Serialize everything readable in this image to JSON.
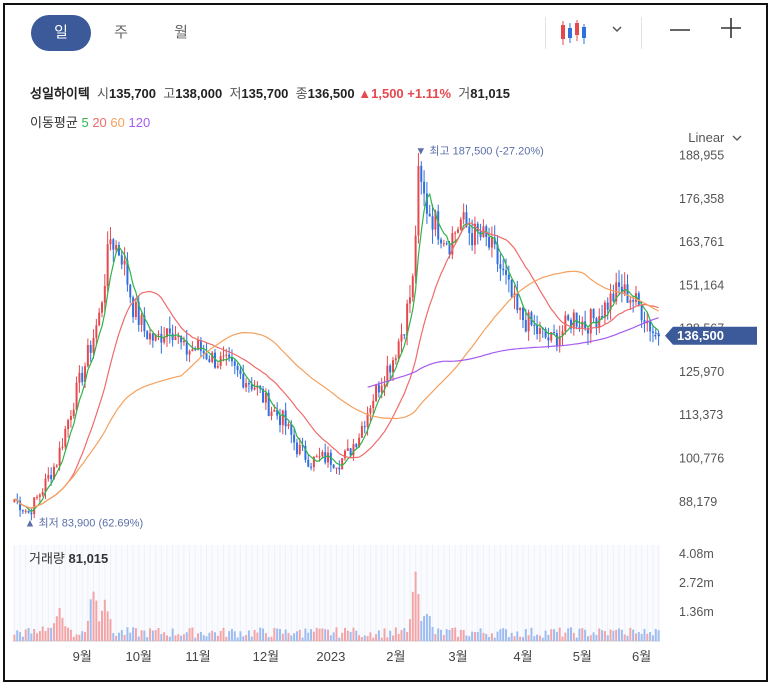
{
  "tabs": [
    "일",
    "주",
    "월"
  ],
  "active_tab": 0,
  "toolbar": {
    "chart_type_icon": "candlestick-icon",
    "dropdown_icon": "chevron-down-icon",
    "zoom_out_icon": "minus-icon",
    "zoom_in_icon": "plus-icon"
  },
  "stock": {
    "name": "성일하이텍",
    "open_label": "시",
    "open": "135,700",
    "high_label": "고",
    "high": "138,000",
    "low_label": "저",
    "low": "135,700",
    "close_label": "종",
    "close": "136,500",
    "change": "1,500",
    "change_pct": "+1.11%",
    "volume_label": "거",
    "volume": "81,015"
  },
  "ma_legend": {
    "label": "이동평균",
    "periods": [
      "5",
      "20",
      "60",
      "120"
    ]
  },
  "scale_label": "Linear",
  "colors": {
    "up": "#e5484d",
    "down": "#2f6fde",
    "ma5": "#2fb34a",
    "ma20": "#ef6b6b",
    "ma60": "#f5a05c",
    "ma120": "#a65cf0",
    "accent": "#3c5a9a"
  },
  "chart_data": {
    "type": "candlestick",
    "price_axis_ticks": [
      "188,955",
      "176,358",
      "163,761",
      "151,164",
      "138,567",
      "125,970",
      "113,373",
      "100,776",
      "88,179"
    ],
    "price_ylim": [
      82000,
      192000
    ],
    "current_price": "136,500",
    "annotations": {
      "high": "최고 187,500 (-27.20%)",
      "low": "최저 83,900 (62.69%)"
    },
    "volume_title": "거래량",
    "volume_value": "81,015",
    "volume_axis_ticks": [
      "4.08m",
      "2.72m",
      "1.36m"
    ],
    "x_labels": [
      "9월",
      "10월",
      "11월",
      "12월",
      "2023",
      "2월",
      "3월",
      "4월",
      "5월",
      "6월"
    ],
    "series_keypoints": [
      [
        0,
        89000
      ],
      [
        5,
        85000
      ],
      [
        10,
        92000
      ],
      [
        15,
        100000
      ],
      [
        20,
        115000
      ],
      [
        25,
        128000
      ],
      [
        30,
        142000
      ],
      [
        34,
        165000
      ],
      [
        38,
        160000
      ],
      [
        42,
        145000
      ],
      [
        46,
        138000
      ],
      [
        50,
        135000
      ],
      [
        55,
        140000
      ],
      [
        60,
        132000
      ],
      [
        65,
        133000
      ],
      [
        70,
        130000
      ],
      [
        75,
        128000
      ],
      [
        80,
        125000
      ],
      [
        85,
        122000
      ],
      [
        90,
        116000
      ],
      [
        95,
        112000
      ],
      [
        100,
        104000
      ],
      [
        105,
        100000
      ],
      [
        110,
        101000
      ],
      [
        115,
        100000
      ],
      [
        118,
        102000
      ],
      [
        122,
        108000
      ],
      [
        126,
        117000
      ],
      [
        130,
        124000
      ],
      [
        134,
        130000
      ],
      [
        138,
        140000
      ],
      [
        141,
        152000
      ],
      [
        143,
        182000
      ],
      [
        146,
        174000
      ],
      [
        150,
        168000
      ],
      [
        154,
        164000
      ],
      [
        158,
        170000
      ],
      [
        162,
        166000
      ],
      [
        166,
        165000
      ],
      [
        170,
        160000
      ],
      [
        174,
        152000
      ],
      [
        178,
        143000
      ],
      [
        182,
        140000
      ],
      [
        186,
        137000
      ],
      [
        190,
        135000
      ],
      [
        194,
        138000
      ],
      [
        198,
        142000
      ],
      [
        202,
        140000
      ],
      [
        206,
        142000
      ],
      [
        210,
        146000
      ],
      [
        214,
        150000
      ],
      [
        218,
        148000
      ],
      [
        222,
        144000
      ],
      [
        226,
        138000
      ],
      [
        228,
        136500
      ]
    ],
    "volume_keypoints": [
      [
        10,
        800000
      ],
      [
        16,
        2200000
      ],
      [
        28,
        3000000
      ],
      [
        32,
        2600000
      ],
      [
        100,
        500000
      ],
      [
        120,
        700000
      ],
      [
        142,
        3300000
      ],
      [
        146,
        1800000
      ],
      [
        214,
        800000
      ],
      [
        225,
        500000
      ]
    ]
  }
}
